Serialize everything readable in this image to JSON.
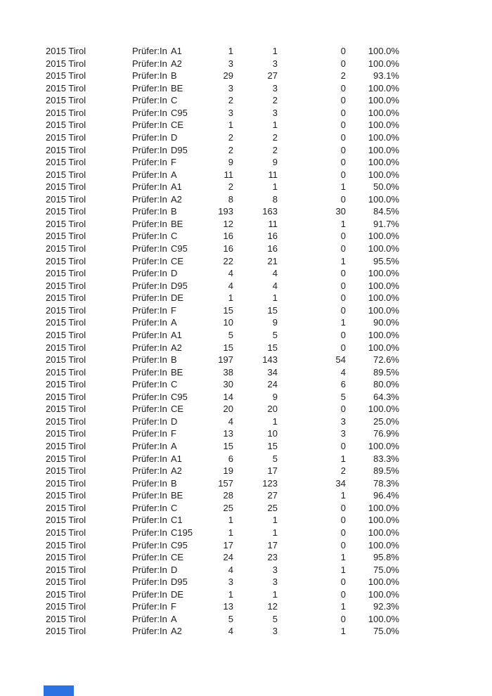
{
  "page": {
    "background_color": "#ffffff",
    "text_color": "#202020"
  },
  "blue_fragment": {
    "color": "#2b72e0"
  },
  "table": {
    "columns": [
      "year_region",
      "examiner",
      "category",
      "total",
      "passed",
      "failed",
      "pass_rate"
    ],
    "rows": [
      [
        "2015 Tirol",
        "Prüfer:In",
        "A1",
        "1",
        "1",
        "0",
        "100.0%"
      ],
      [
        "2015 Tirol",
        "Prüfer:In",
        "A2",
        "3",
        "3",
        "0",
        "100.0%"
      ],
      [
        "2015 Tirol",
        "Prüfer:In",
        "B",
        "29",
        "27",
        "2",
        "93.1%"
      ],
      [
        "2015 Tirol",
        "Prüfer:In",
        "BE",
        "3",
        "3",
        "0",
        "100.0%"
      ],
      [
        "2015 Tirol",
        "Prüfer:In",
        "C",
        "2",
        "2",
        "0",
        "100.0%"
      ],
      [
        "2015 Tirol",
        "Prüfer:In",
        "C95",
        "3",
        "3",
        "0",
        "100.0%"
      ],
      [
        "2015 Tirol",
        "Prüfer:In",
        "CE",
        "1",
        "1",
        "0",
        "100.0%"
      ],
      [
        "2015 Tirol",
        "Prüfer:In",
        "D",
        "2",
        "2",
        "0",
        "100.0%"
      ],
      [
        "2015 Tirol",
        "Prüfer:In",
        "D95",
        "2",
        "2",
        "0",
        "100.0%"
      ],
      [
        "2015 Tirol",
        "Prüfer:In",
        "F",
        "9",
        "9",
        "0",
        "100.0%"
      ],
      [
        "2015 Tirol",
        "Prüfer:In",
        "A",
        "11",
        "11",
        "0",
        "100.0%"
      ],
      [
        "2015 Tirol",
        "Prüfer:In",
        "A1",
        "2",
        "1",
        "1",
        "50.0%"
      ],
      [
        "2015 Tirol",
        "Prüfer:In",
        "A2",
        "8",
        "8",
        "0",
        "100.0%"
      ],
      [
        "2015 Tirol",
        "Prüfer:In",
        "B",
        "193",
        "163",
        "30",
        "84.5%"
      ],
      [
        "2015 Tirol",
        "Prüfer:In",
        "BE",
        "12",
        "11",
        "1",
        "91.7%"
      ],
      [
        "2015 Tirol",
        "Prüfer:In",
        "C",
        "16",
        "16",
        "0",
        "100.0%"
      ],
      [
        "2015 Tirol",
        "Prüfer:In",
        "C95",
        "16",
        "16",
        "0",
        "100.0%"
      ],
      [
        "2015 Tirol",
        "Prüfer:In",
        "CE",
        "22",
        "21",
        "1",
        "95.5%"
      ],
      [
        "2015 Tirol",
        "Prüfer:In",
        "D",
        "4",
        "4",
        "0",
        "100.0%"
      ],
      [
        "2015 Tirol",
        "Prüfer:In",
        "D95",
        "4",
        "4",
        "0",
        "100.0%"
      ],
      [
        "2015 Tirol",
        "Prüfer:In",
        "DE",
        "1",
        "1",
        "0",
        "100.0%"
      ],
      [
        "2015 Tirol",
        "Prüfer:In",
        "F",
        "15",
        "15",
        "0",
        "100.0%"
      ],
      [
        "2015 Tirol",
        "Prüfer:In",
        "A",
        "10",
        "9",
        "1",
        "90.0%"
      ],
      [
        "2015 Tirol",
        "Prüfer:In",
        "A1",
        "5",
        "5",
        "0",
        "100.0%"
      ],
      [
        "2015 Tirol",
        "Prüfer:In",
        "A2",
        "15",
        "15",
        "0",
        "100.0%"
      ],
      [
        "2015 Tirol",
        "Prüfer:In",
        "B",
        "197",
        "143",
        "54",
        "72.6%"
      ],
      [
        "2015 Tirol",
        "Prüfer:In",
        "BE",
        "38",
        "34",
        "4",
        "89.5%"
      ],
      [
        "2015 Tirol",
        "Prüfer:In",
        "C",
        "30",
        "24",
        "6",
        "80.0%"
      ],
      [
        "2015 Tirol",
        "Prüfer:In",
        "C95",
        "14",
        "9",
        "5",
        "64.3%"
      ],
      [
        "2015 Tirol",
        "Prüfer:In",
        "CE",
        "20",
        "20",
        "0",
        "100.0%"
      ],
      [
        "2015 Tirol",
        "Prüfer:In",
        "D",
        "4",
        "1",
        "3",
        "25.0%"
      ],
      [
        "2015 Tirol",
        "Prüfer:In",
        "F",
        "13",
        "10",
        "3",
        "76.9%"
      ],
      [
        "2015 Tirol",
        "Prüfer:In",
        "A",
        "15",
        "15",
        "0",
        "100.0%"
      ],
      [
        "2015 Tirol",
        "Prüfer:In",
        "A1",
        "6",
        "5",
        "1",
        "83.3%"
      ],
      [
        "2015 Tirol",
        "Prüfer:In",
        "A2",
        "19",
        "17",
        "2",
        "89.5%"
      ],
      [
        "2015 Tirol",
        "Prüfer:In",
        "B",
        "157",
        "123",
        "34",
        "78.3%"
      ],
      [
        "2015 Tirol",
        "Prüfer:In",
        "BE",
        "28",
        "27",
        "1",
        "96.4%"
      ],
      [
        "2015 Tirol",
        "Prüfer:In",
        "C",
        "25",
        "25",
        "0",
        "100.0%"
      ],
      [
        "2015 Tirol",
        "Prüfer:In",
        "C1",
        "1",
        "1",
        "0",
        "100.0%"
      ],
      [
        "2015 Tirol",
        "Prüfer:In",
        "C195",
        "1",
        "1",
        "0",
        "100.0%"
      ],
      [
        "2015 Tirol",
        "Prüfer:In",
        "C95",
        "17",
        "17",
        "0",
        "100.0%"
      ],
      [
        "2015 Tirol",
        "Prüfer:In",
        "CE",
        "24",
        "23",
        "1",
        "95.8%"
      ],
      [
        "2015 Tirol",
        "Prüfer:In",
        "D",
        "4",
        "3",
        "1",
        "75.0%"
      ],
      [
        "2015 Tirol",
        "Prüfer:In",
        "D95",
        "3",
        "3",
        "0",
        "100.0%"
      ],
      [
        "2015 Tirol",
        "Prüfer:In",
        "DE",
        "1",
        "1",
        "0",
        "100.0%"
      ],
      [
        "2015 Tirol",
        "Prüfer:In",
        "F",
        "13",
        "12",
        "1",
        "92.3%"
      ],
      [
        "2015 Tirol",
        "Prüfer:In",
        "A",
        "5",
        "5",
        "0",
        "100.0%"
      ],
      [
        "2015 Tirol",
        "Prüfer:In",
        "A2",
        "4",
        "3",
        "1",
        "75.0%"
      ]
    ]
  }
}
